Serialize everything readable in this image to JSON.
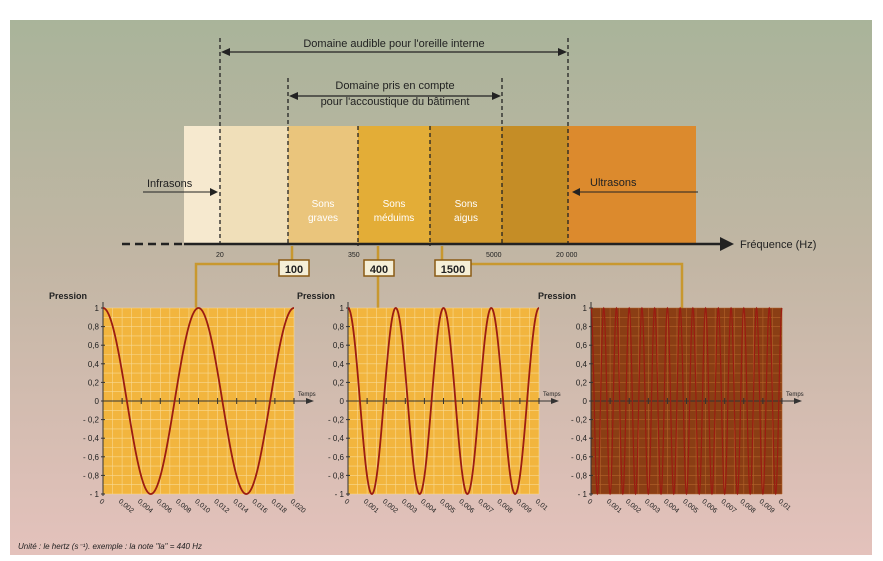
{
  "top": {
    "audible_label": "Domaine audible pour l'oreille interne",
    "building_label_line1": "Domaine pris en compte",
    "building_label_line2": "pour l'accoustique du bâtiment"
  },
  "bands": {
    "infrasons": "Infrasons",
    "graves_line1": "Sons",
    "graves_line2": "graves",
    "mediums_line1": "Sons",
    "mediums_line2": "méduims",
    "aigus_line1": "Sons",
    "aigus_line2": "aigus",
    "ultrasons": "Ultrasons"
  },
  "axis": {
    "label": "Fréquence (Hz)",
    "ticks": [
      "20",
      "350",
      "5000",
      "20 000"
    ]
  },
  "callouts": [
    "100",
    "400",
    "1500"
  ],
  "colors": {
    "band1": "#f6e9cf",
    "band2": "#f0dfb9",
    "band3": "#eac57c",
    "band4": "#e3ad37",
    "band5": "#d39b2e",
    "band6": "#c58d26",
    "band7": "#dc8a2d",
    "plot_bg": "#f2b53e",
    "plot_bg_dark": "#8a3e14",
    "wave": "#9b1c12"
  },
  "footer": "Unité : le hertz (s⁻¹). exemple : la note \"la\" = 440 Hz",
  "chart_data": [
    {
      "type": "line",
      "ylabel": "Pression",
      "xlabel": "Temps",
      "frequency_hz": 100,
      "ylim": [
        -1,
        1
      ],
      "yticks": [
        "1",
        "0,8",
        "0,6",
        "0,4",
        "0,2",
        "0",
        "- 0,2",
        "- 0,4",
        "- 0,6",
        "- 0,8",
        "- 1"
      ],
      "xlim": [
        0,
        0.02
      ],
      "xticks": [
        "0",
        "0,002",
        "0,004",
        "0,006",
        "0,008",
        "0,010",
        "0,012",
        "0,014",
        "0,016",
        "0,018",
        "0,020"
      ]
    },
    {
      "type": "line",
      "ylabel": "Pression",
      "xlabel": "Temps",
      "frequency_hz": 400,
      "ylim": [
        -1,
        1
      ],
      "yticks": [
        "1",
        "0,8",
        "0,6",
        "0,4",
        "0,2",
        "0",
        "- 0,2",
        "- 0,4",
        "- 0,6",
        "- 0,8",
        "- 1"
      ],
      "xlim": [
        0,
        0.01
      ],
      "xticks": [
        "0",
        "0,001",
        "0,002",
        "0,003",
        "0,004",
        "0,005",
        "0,006",
        "0,007",
        "0,008",
        "0,009",
        "0,01"
      ]
    },
    {
      "type": "line",
      "ylabel": "Pression",
      "xlabel": "Temps",
      "frequency_hz": 1500,
      "ylim": [
        -1,
        1
      ],
      "yticks": [
        "1",
        "0,8",
        "0,6",
        "0,4",
        "0,2",
        "0",
        "- 0,2",
        "- 0,4",
        "- 0,6",
        "- 0,8",
        "- 1"
      ],
      "xlim": [
        0,
        0.01
      ],
      "xticks": [
        "0",
        "0,001",
        "0,002",
        "0,003",
        "0,004",
        "0,005",
        "0,006",
        "0,007",
        "0,008",
        "0,009",
        "0,01"
      ]
    }
  ]
}
